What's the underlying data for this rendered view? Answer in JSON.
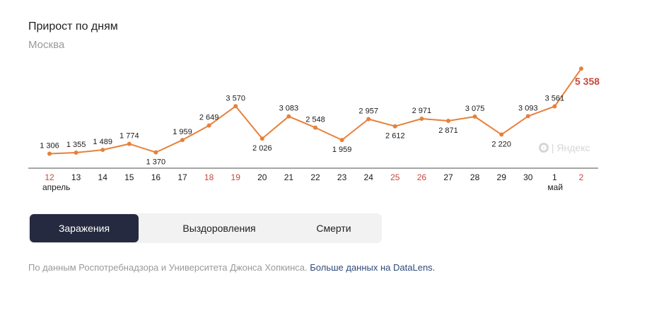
{
  "header": {
    "title": "Прирост по дням",
    "subtitle": "Москва"
  },
  "tabs": [
    {
      "label": "Заражения",
      "active": true
    },
    {
      "label": "Выздоровления",
      "active": false
    },
    {
      "label": "Смерти",
      "active": false
    }
  ],
  "footer": {
    "source_text": "По данным Роспотребнадзора и Университета Джонса Хопкинса.",
    "link_text": "Больше данных на DataLens."
  },
  "watermark": {
    "text": "Яндекс",
    "icon": "yandex-logo-icon"
  },
  "colors": {
    "line": "#e8803a",
    "highlight": "#c8483b",
    "weekend_label": "#c8483b",
    "axis": "#888888",
    "active_tab": "#262a40",
    "link": "#2f4a7a"
  },
  "chart_data": {
    "type": "line",
    "categories": [
      "12",
      "13",
      "14",
      "15",
      "16",
      "17",
      "18",
      "19",
      "20",
      "21",
      "22",
      "23",
      "24",
      "25",
      "26",
      "27",
      "28",
      "29",
      "30",
      "1",
      "2"
    ],
    "month_labels": [
      {
        "at_index": 0,
        "text": "апрель"
      },
      {
        "at_index": 19,
        "text": "май"
      }
    ],
    "weekend_indices": [
      0,
      6,
      7,
      13,
      14,
      20
    ],
    "series": [
      {
        "values": [
          1306,
          1355,
          1489,
          1774,
          1370,
          1959,
          2649,
          3570,
          2026,
          3083,
          2548,
          1959,
          2957,
          2612,
          2971,
          2871,
          3075,
          2220,
          3093,
          3561,
          5358
        ],
        "data_labels": [
          "1 306",
          "1 355",
          "1 489",
          "1 774",
          "1 370",
          "1 959",
          "2 649",
          "3 570",
          "2 026",
          "3 083",
          "2 548",
          "1 959",
          "2 957",
          "2 612",
          "2 971",
          "2 871",
          "3 075",
          "2 220",
          "3 093",
          "3 561",
          "5 358"
        ]
      }
    ],
    "ylim": [
      0,
      6000
    ],
    "grid": false,
    "legend": "none"
  }
}
